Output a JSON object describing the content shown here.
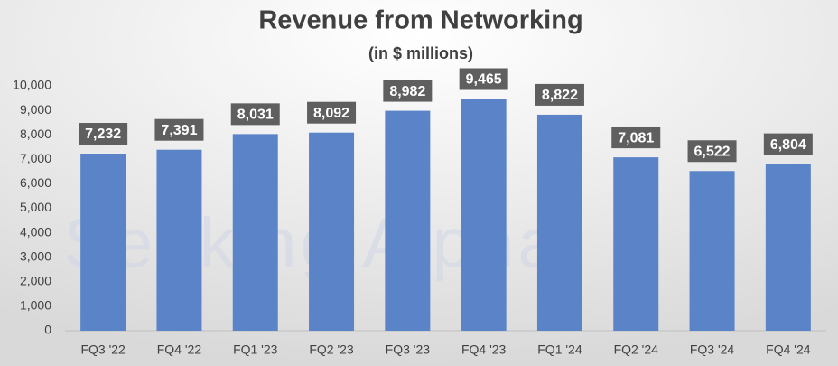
{
  "chart_data": {
    "type": "bar",
    "title": "Revenue from Networking",
    "subtitle": "(in $ millions)",
    "watermark": "Seeking Alpha",
    "categories": [
      "FQ3 '22",
      "FQ4 '22",
      "FQ1 '23",
      "FQ2 '23",
      "FQ3 '23",
      "FQ4 '23",
      "FQ1 '24",
      "FQ2 '24",
      "FQ3 '24",
      "FQ4 '24"
    ],
    "values": [
      7232,
      7391,
      8031,
      8092,
      8982,
      9465,
      8822,
      7081,
      6522,
      6804
    ],
    "value_labels": [
      "7,232",
      "7,391",
      "8,031",
      "8,092",
      "8,982",
      "9,465",
      "8,822",
      "7,081",
      "6,522",
      "6,804"
    ],
    "color": "#5b84c8",
    "ylim": [
      0,
      10000
    ],
    "yticks": [
      0,
      {
        "value": 1000,
        "label": "1,000"
      },
      {
        "value": 2000,
        "label": "2,000"
      },
      {
        "value": 3000,
        "label": "3,000"
      },
      {
        "value": 4000,
        "label": "4,000"
      },
      {
        "value": 5000,
        "label": "5,000"
      },
      {
        "value": 6000,
        "label": "6,000"
      },
      {
        "value": 7000,
        "label": "7,000"
      },
      {
        "value": 8000,
        "label": "8,000"
      },
      {
        "value": 9000,
        "label": "9,000"
      },
      {
        "value": 10000,
        "label": "10,000"
      }
    ],
    "grid": false
  }
}
